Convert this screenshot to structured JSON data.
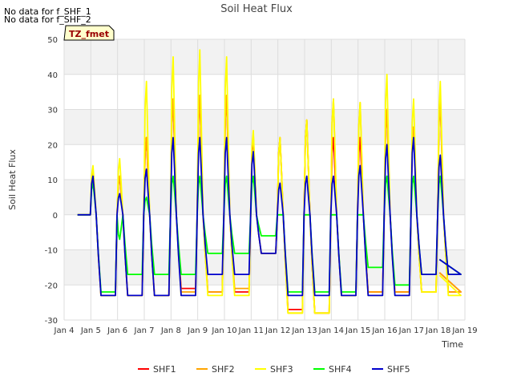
{
  "notes": [
    "No data for f_SHF_1",
    "No data for f_SHF_2"
  ],
  "chart_data": {
    "type": "line",
    "title": "Soil Heat Flux",
    "xlabel": "Time",
    "ylabel": "Soil Heat Flux",
    "badge": "TZ_fmet",
    "xlim": [
      4,
      19
    ],
    "ylim": [
      -30,
      50
    ],
    "xticks": [
      {
        "value": 4,
        "label": "Jan 4"
      },
      {
        "value": 5,
        "label": "Jan 5"
      },
      {
        "value": 6,
        "label": "Jan 6"
      },
      {
        "value": 7,
        "label": "Jan 7"
      },
      {
        "value": 8,
        "label": "Jan 8"
      },
      {
        "value": 9,
        "label": "Jan 9"
      },
      {
        "value": 10,
        "label": "Jan 10"
      },
      {
        "value": 11,
        "label": "Jan 11"
      },
      {
        "value": 12,
        "label": "Jan 12"
      },
      {
        "value": 13,
        "label": "Jan 13"
      },
      {
        "value": 14,
        "label": "Jan 14"
      },
      {
        "value": 15,
        "label": "Jan 15"
      },
      {
        "value": 16,
        "label": "Jan 16"
      },
      {
        "value": 17,
        "label": "Jan 17"
      },
      {
        "value": 18,
        "label": "Jan 18"
      },
      {
        "value": 19,
        "label": "Jan 19"
      }
    ],
    "yticks": [
      -30,
      -20,
      -10,
      0,
      10,
      20,
      30,
      40,
      50
    ],
    "grid": true,
    "legend_position": "bottom",
    "series": [
      {
        "name": "SHF1",
        "color": "#ff0000",
        "peaks": [
          11,
          11,
          22,
          33,
          34,
          34,
          22,
          22,
          27,
          22,
          22,
          30,
          25,
          33
        ],
        "troughs": [
          -23,
          -23,
          -23,
          -21,
          -22,
          -22,
          -11,
          -27,
          -28,
          -23,
          -22,
          -22,
          -22,
          -22
        ]
      },
      {
        "name": "SHF2",
        "color": "#ffa500",
        "peaks": [
          12,
          11,
          22,
          33,
          34,
          34,
          23,
          22,
          27,
          33,
          32,
          30,
          25,
          33
        ],
        "troughs": [
          -23,
          -23,
          -23,
          -22,
          -22,
          -21,
          -11,
          -28,
          -28,
          -23,
          -22,
          -22,
          -22,
          -22
        ]
      },
      {
        "name": "SHF3",
        "color": "#ffff00",
        "peaks": [
          14,
          16,
          38,
          45,
          47,
          45,
          24,
          22,
          27,
          33,
          32,
          40,
          33,
          38
        ],
        "troughs": [
          -23,
          -23,
          -23,
          -23,
          -23,
          -23,
          -11,
          -28,
          -28,
          -23,
          -23,
          -23,
          -22,
          -23
        ]
      },
      {
        "name": "SHF4",
        "color": "#00ff00",
        "peaks": [
          9,
          -7,
          5,
          11,
          11,
          11,
          11,
          0,
          0,
          0,
          0,
          11,
          11,
          11
        ],
        "troughs": [
          -22,
          -17,
          -17,
          -17,
          -11,
          -11,
          -6,
          -22,
          -22,
          -22,
          -15,
          -20,
          -17,
          -17
        ]
      },
      {
        "name": "SHF5",
        "color": "#0000cc",
        "peaks": [
          11,
          6,
          13,
          22,
          22,
          22,
          18,
          9,
          11,
          11,
          14,
          20,
          22,
          17
        ],
        "troughs": [
          -23,
          -23,
          -23,
          -23,
          -17,
          -17,
          -11,
          -23,
          -23,
          -23,
          -23,
          -23,
          -17,
          -17
        ]
      }
    ]
  }
}
